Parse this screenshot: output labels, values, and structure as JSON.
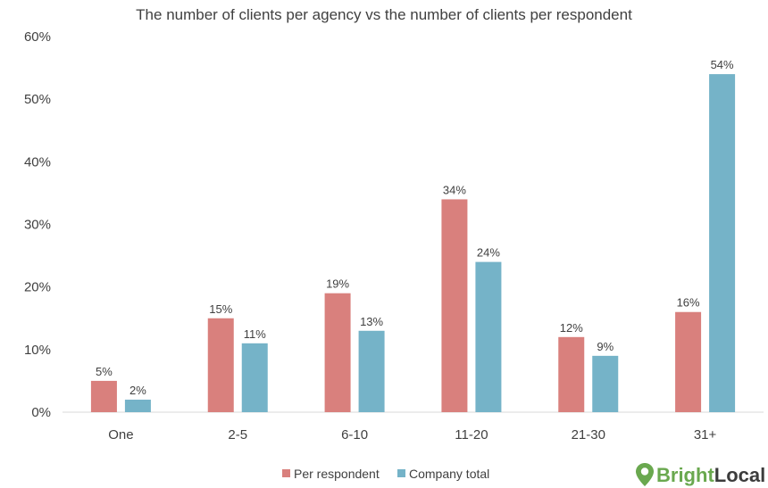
{
  "chart_data": {
    "type": "bar",
    "title": "The number of clients per agency vs the number of clients per respondent",
    "xlabel": "",
    "ylabel": "",
    "categories": [
      "One",
      "2-5",
      "6-10",
      "11-20",
      "21-30",
      "31+"
    ],
    "series": [
      {
        "name": "Per respondent",
        "color": "#d9807d",
        "values": [
          5,
          15,
          19,
          34,
          12,
          16
        ],
        "labels": [
          "5%",
          "15%",
          "19%",
          "34%",
          "12%",
          "16%"
        ]
      },
      {
        "name": "Company total",
        "color": "#75b3c8",
        "values": [
          2,
          11,
          13,
          24,
          9,
          54
        ],
        "labels": [
          "2%",
          "11%",
          "13%",
          "24%",
          "9%",
          "54%"
        ]
      }
    ],
    "ylim": [
      0,
      60
    ],
    "yticks": [
      0,
      10,
      20,
      30,
      40,
      50,
      60
    ],
    "ytick_labels": [
      "0%",
      "10%",
      "20%",
      "30%",
      "40%",
      "50%",
      "60%"
    ],
    "grid": false,
    "legend_position": "bottom-center"
  },
  "logo": {
    "name": "BrightLocal",
    "part1": "Bright",
    "part2": "Local",
    "icon": "map-pin-icon",
    "color": "#6aa84f"
  }
}
